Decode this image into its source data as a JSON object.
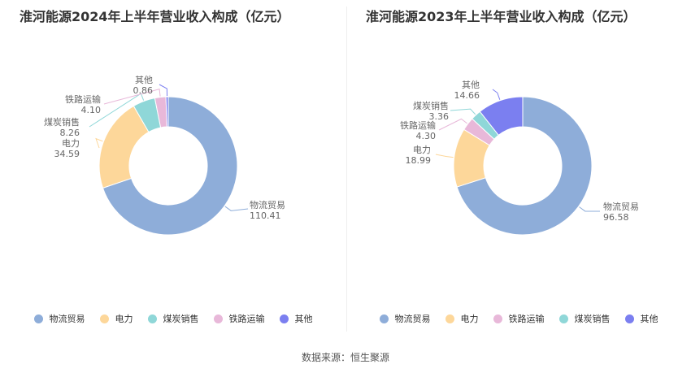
{
  "chart_data": [
    {
      "type": "pie",
      "title": "淮河能源2024年上半年营业收入构成（亿元）",
      "slices": [
        {
          "name": "物流贸易",
          "label": "110.41",
          "value": 110.41,
          "color": "#8eadd9"
        },
        {
          "name": "电力",
          "label": "34.59",
          "value": 34.59,
          "color": "#fdd79a"
        },
        {
          "name": "煤炭销售",
          "label": "8.26",
          "value": 8.26,
          "color": "#8fd7d8"
        },
        {
          "name": "铁路运输",
          "label": "4.10",
          "value": 4.1,
          "color": "#e8b8d9"
        },
        {
          "name": "其他",
          "label": "0.86",
          "value": 0.86,
          "color": "#7b7ff0"
        }
      ],
      "legend": [
        "物流贸易",
        "电力",
        "煤炭销售",
        "铁路运输",
        "其他"
      ],
      "legend_colors": [
        "#8eadd9",
        "#fdd79a",
        "#8fd7d8",
        "#e8b8d9",
        "#7b7ff0"
      ],
      "legend_position": "bottom"
    },
    {
      "type": "pie",
      "title": "淮河能源2023年上半年营业收入构成（亿元）",
      "slices": [
        {
          "name": "物流贸易",
          "label": "96.58",
          "value": 96.58,
          "color": "#8eadd9"
        },
        {
          "name": "电力",
          "label": "18.99",
          "value": 18.99,
          "color": "#fdd79a"
        },
        {
          "name": "铁路运输",
          "label": "4.30",
          "value": 4.3,
          "color": "#e8b8d9"
        },
        {
          "name": "煤炭销售",
          "label": "3.36",
          "value": 3.36,
          "color": "#8fd7d8"
        },
        {
          "name": "其他",
          "label": "14.66",
          "value": 14.66,
          "color": "#7b7ff0"
        }
      ],
      "legend": [
        "物流贸易",
        "电力",
        "铁路运输",
        "煤炭销售",
        "其他"
      ],
      "legend_colors": [
        "#8eadd9",
        "#fdd79a",
        "#e8b8d9",
        "#8fd7d8",
        "#7b7ff0"
      ],
      "legend_position": "bottom"
    }
  ],
  "source": "数据来源：恒生聚源"
}
